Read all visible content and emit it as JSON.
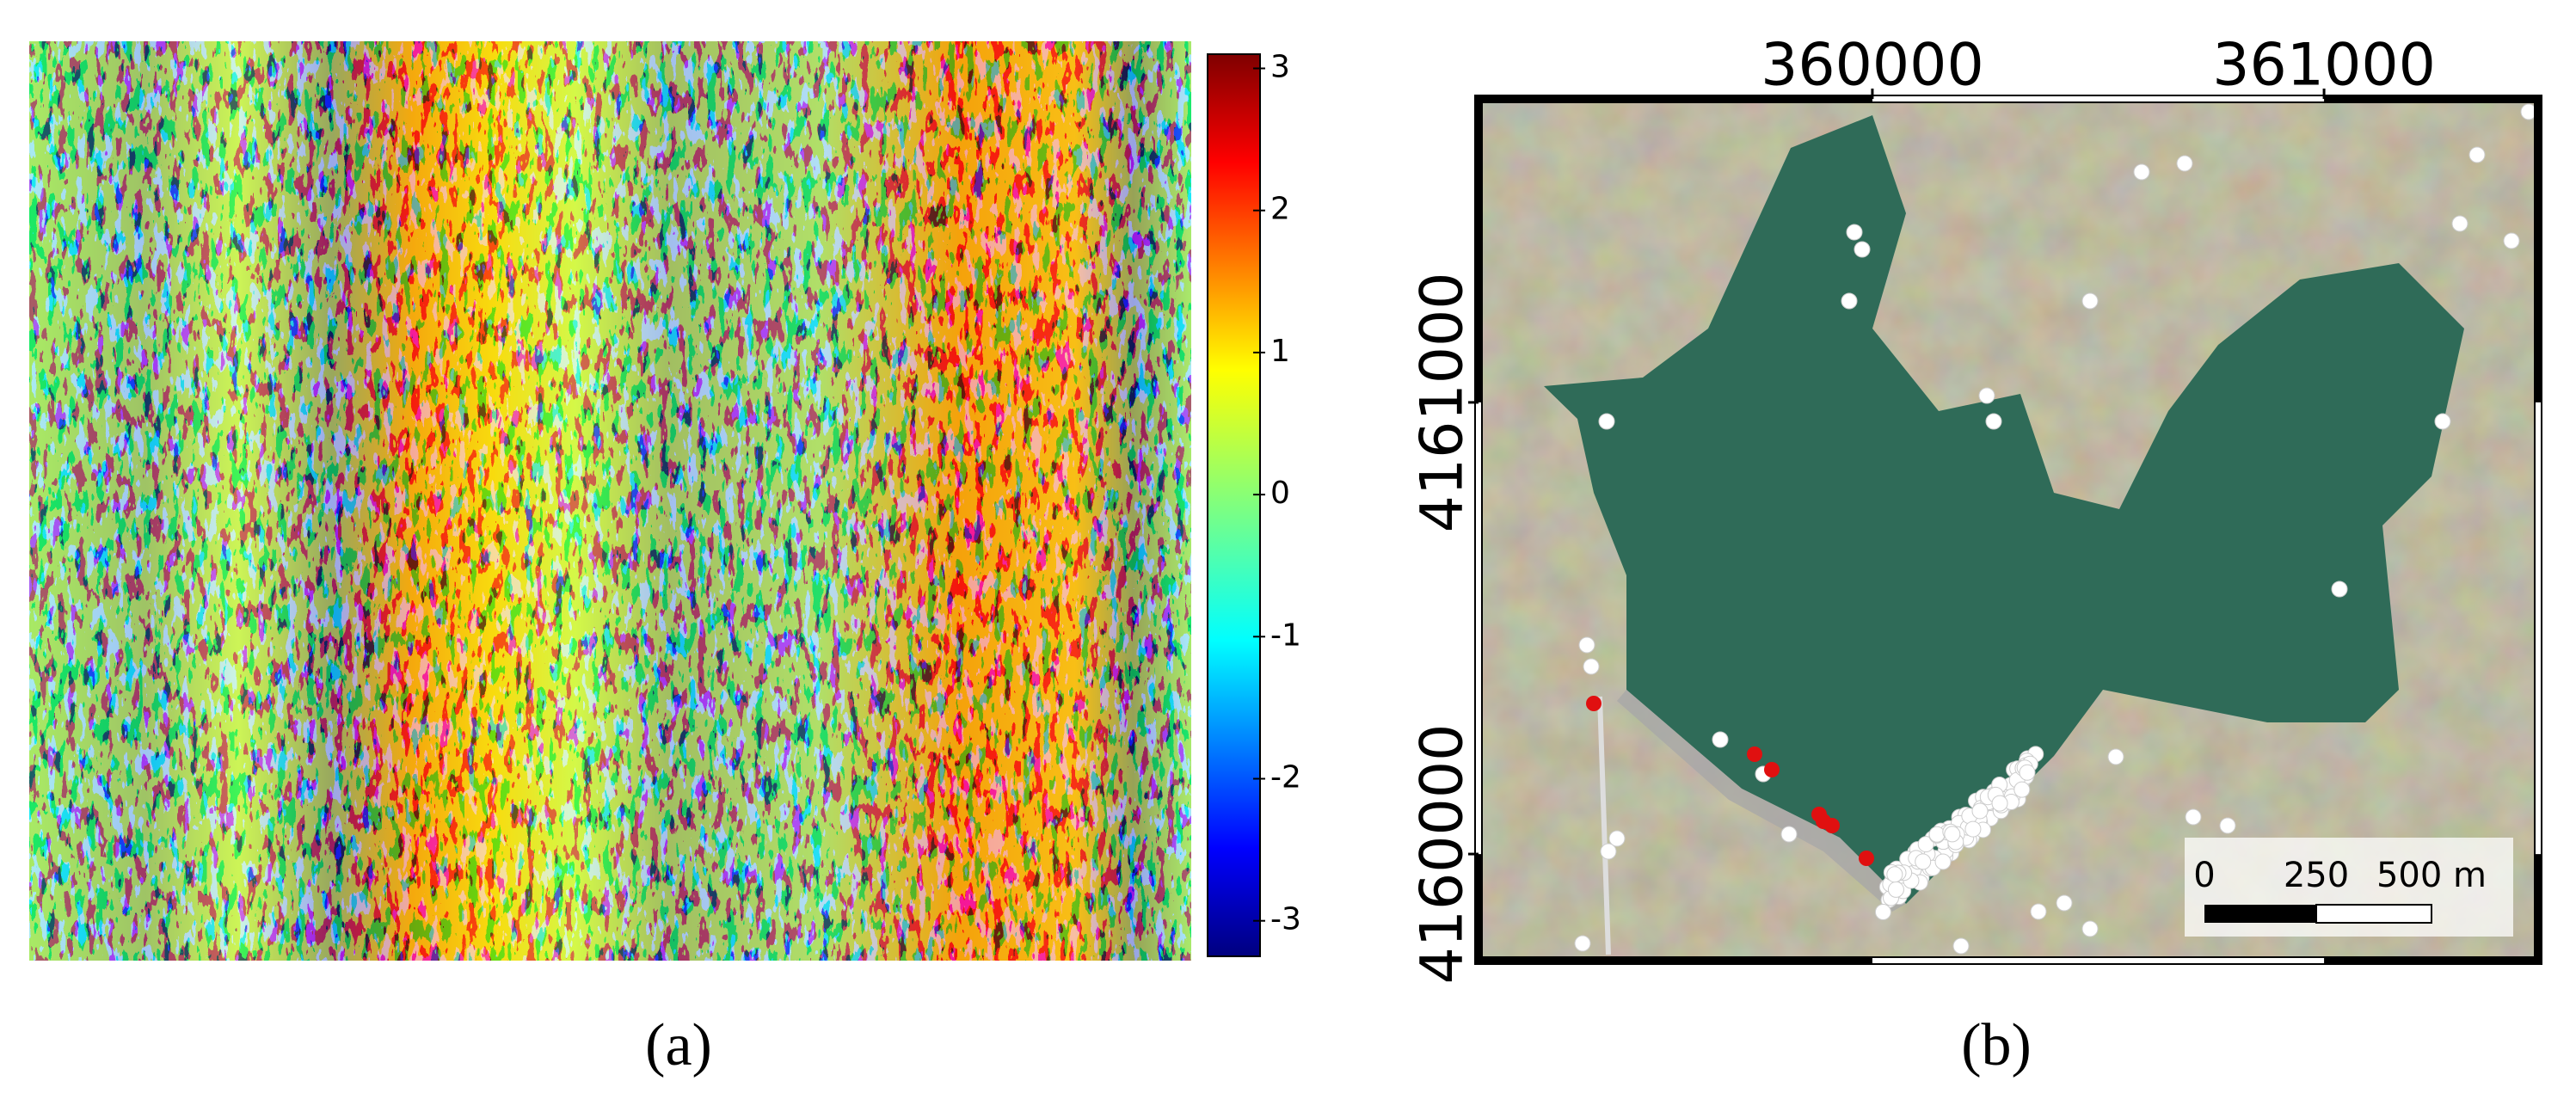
{
  "panel_a": {
    "label": "(a)",
    "colorbar": {
      "lim": [
        -3.25,
        3.1
      ],
      "ticks": [
        3,
        2,
        1,
        0,
        -1,
        -2,
        -3
      ]
    }
  },
  "panel_b": {
    "label": "(b)",
    "xlim": [
      359128,
      361474
    ],
    "ylim": [
      4159764,
      4161672
    ],
    "xticks": [
      360000,
      361000
    ],
    "yticks": [
      4161000,
      4160000
    ],
    "scalebar": {
      "labels": [
        "0",
        "250",
        "500 m"
      ]
    }
  }
}
